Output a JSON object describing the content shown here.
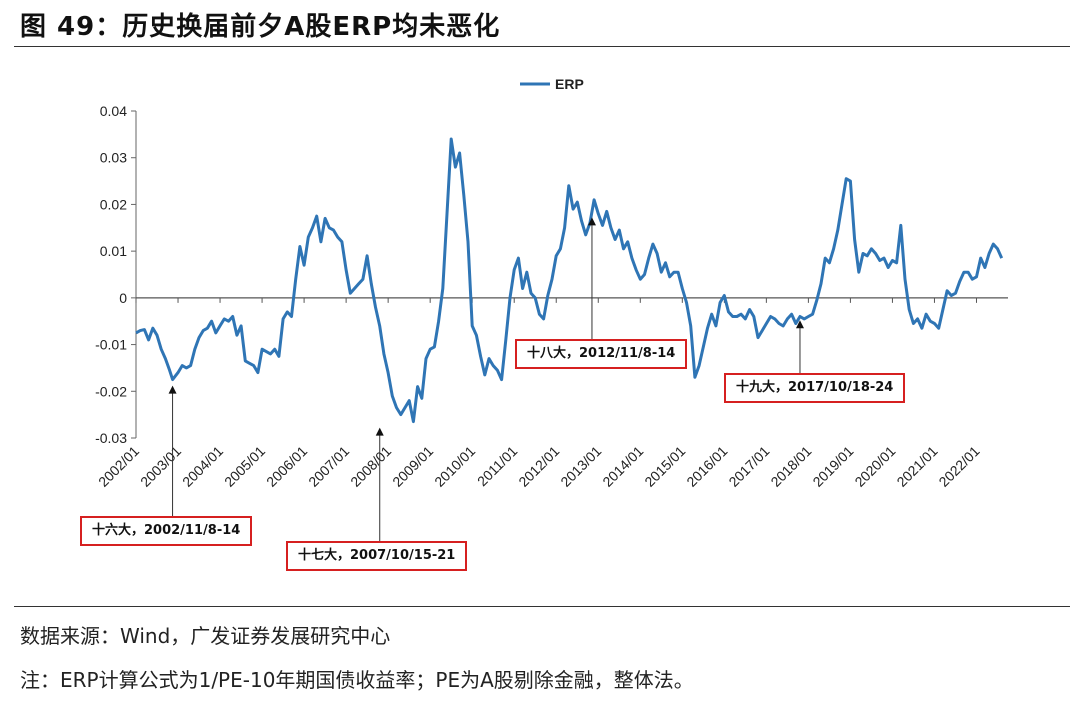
{
  "header": {
    "title": "图 49：历史换届前夕A股ERP均未恶化"
  },
  "footer": {
    "source": "数据来源：Wind，广发证券发展研究中心",
    "note": "注：ERP计算公式为1/PE-10年期国债收益率；PE为A股剔除金融，整体法。"
  },
  "colors": {
    "line": "#2f75b5",
    "annotation_border": "#d62020"
  },
  "chart_data": {
    "type": "line",
    "legend": {
      "position": "top-center"
    },
    "grid": false,
    "ylim": [
      -0.03,
      0.04
    ],
    "yticks": [
      "0.04",
      "0.03",
      "0.02",
      "0.01",
      "0",
      "-0.01",
      "-0.02",
      "-0.03"
    ],
    "xticks": [
      "2002/01",
      "2003/01",
      "2004/01",
      "2005/01",
      "2006/01",
      "2007/01",
      "2008/01",
      "2009/01",
      "2010/01",
      "2011/01",
      "2012/01",
      "2013/01",
      "2014/01",
      "2015/01",
      "2016/01",
      "2017/01",
      "2018/01",
      "2019/01",
      "2020/01",
      "2021/01",
      "2022/01"
    ],
    "series": [
      {
        "name": "ERP",
        "points": [
          [
            2002.0,
            -0.0075
          ],
          [
            2002.1,
            -0.007
          ],
          [
            2002.2,
            -0.0068
          ],
          [
            2002.3,
            -0.009
          ],
          [
            2002.4,
            -0.0065
          ],
          [
            2002.5,
            -0.008
          ],
          [
            2002.6,
            -0.011
          ],
          [
            2002.7,
            -0.013
          ],
          [
            2002.8,
            -0.0155
          ],
          [
            2002.87,
            -0.0175
          ],
          [
            2003.0,
            -0.016
          ],
          [
            2003.1,
            -0.0145
          ],
          [
            2003.2,
            -0.015
          ],
          [
            2003.3,
            -0.0145
          ],
          [
            2003.4,
            -0.011
          ],
          [
            2003.5,
            -0.0085
          ],
          [
            2003.6,
            -0.007
          ],
          [
            2003.7,
            -0.0065
          ],
          [
            2003.8,
            -0.005
          ],
          [
            2003.9,
            -0.0075
          ],
          [
            2004.0,
            -0.006
          ],
          [
            2004.1,
            -0.0045
          ],
          [
            2004.2,
            -0.005
          ],
          [
            2004.3,
            -0.004
          ],
          [
            2004.4,
            -0.008
          ],
          [
            2004.5,
            -0.006
          ],
          [
            2004.6,
            -0.0135
          ],
          [
            2004.7,
            -0.014
          ],
          [
            2004.8,
            -0.0145
          ],
          [
            2004.9,
            -0.016
          ],
          [
            2005.0,
            -0.011
          ],
          [
            2005.1,
            -0.0115
          ],
          [
            2005.2,
            -0.012
          ],
          [
            2005.3,
            -0.011
          ],
          [
            2005.4,
            -0.0125
          ],
          [
            2005.5,
            -0.0045
          ],
          [
            2005.6,
            -0.003
          ],
          [
            2005.7,
            -0.004
          ],
          [
            2005.8,
            0.004
          ],
          [
            2005.9,
            0.011
          ],
          [
            2006.0,
            0.007
          ],
          [
            2006.1,
            0.013
          ],
          [
            2006.2,
            0.015
          ],
          [
            2006.3,
            0.0175
          ],
          [
            2006.4,
            0.012
          ],
          [
            2006.5,
            0.017
          ],
          [
            2006.6,
            0.015
          ],
          [
            2006.7,
            0.0145
          ],
          [
            2006.8,
            0.013
          ],
          [
            2006.9,
            0.012
          ],
          [
            2007.0,
            0.006
          ],
          [
            2007.1,
            0.001
          ],
          [
            2007.2,
            0.002
          ],
          [
            2007.3,
            0.003
          ],
          [
            2007.4,
            0.004
          ],
          [
            2007.5,
            0.009
          ],
          [
            2007.6,
            0.003
          ],
          [
            2007.7,
            -0.002
          ],
          [
            2007.8,
            -0.006
          ],
          [
            2007.9,
            -0.012
          ],
          [
            2008.0,
            -0.016
          ],
          [
            2008.1,
            -0.021
          ],
          [
            2008.2,
            -0.0235
          ],
          [
            2008.3,
            -0.025
          ],
          [
            2008.4,
            -0.0235
          ],
          [
            2008.5,
            -0.022
          ],
          [
            2008.6,
            -0.0265
          ],
          [
            2008.7,
            -0.019
          ],
          [
            2008.8,
            -0.0215
          ],
          [
            2008.9,
            -0.013
          ],
          [
            2009.0,
            -0.011
          ],
          [
            2009.1,
            -0.0105
          ],
          [
            2009.2,
            -0.005
          ],
          [
            2009.3,
            0.002
          ],
          [
            2009.4,
            0.018
          ],
          [
            2009.5,
            0.034
          ],
          [
            2009.6,
            0.028
          ],
          [
            2009.7,
            0.031
          ],
          [
            2009.8,
            0.022
          ],
          [
            2009.9,
            0.012
          ],
          [
            2010.0,
            -0.006
          ],
          [
            2010.1,
            -0.008
          ],
          [
            2010.2,
            -0.0125
          ],
          [
            2010.3,
            -0.0165
          ],
          [
            2010.4,
            -0.013
          ],
          [
            2010.5,
            -0.0145
          ],
          [
            2010.6,
            -0.0155
          ],
          [
            2010.7,
            -0.0175
          ],
          [
            2010.8,
            -0.009
          ],
          [
            2010.9,
            0.0
          ],
          [
            2011.0,
            0.006
          ],
          [
            2011.1,
            0.0085
          ],
          [
            2011.2,
            0.002
          ],
          [
            2011.3,
            0.0055
          ],
          [
            2011.4,
            0.001
          ],
          [
            2011.5,
            0.0
          ],
          [
            2011.6,
            -0.0035
          ],
          [
            2011.7,
            -0.0045
          ],
          [
            2011.8,
            0.0005
          ],
          [
            2011.9,
            0.004
          ],
          [
            2012.0,
            0.009
          ],
          [
            2012.1,
            0.0105
          ],
          [
            2012.2,
            0.015
          ],
          [
            2012.3,
            0.024
          ],
          [
            2012.4,
            0.019
          ],
          [
            2012.5,
            0.0205
          ],
          [
            2012.6,
            0.0165
          ],
          [
            2012.7,
            0.0135
          ],
          [
            2012.8,
            0.016
          ],
          [
            2012.9,
            0.021
          ],
          [
            2013.0,
            0.018
          ],
          [
            2013.1,
            0.0155
          ],
          [
            2013.2,
            0.0185
          ],
          [
            2013.3,
            0.015
          ],
          [
            2013.4,
            0.0125
          ],
          [
            2013.5,
            0.0145
          ],
          [
            2013.6,
            0.0105
          ],
          [
            2013.7,
            0.012
          ],
          [
            2013.8,
            0.0085
          ],
          [
            2013.9,
            0.006
          ],
          [
            2014.0,
            0.004
          ],
          [
            2014.1,
            0.005
          ],
          [
            2014.2,
            0.0085
          ],
          [
            2014.3,
            0.0115
          ],
          [
            2014.4,
            0.0095
          ],
          [
            2014.5,
            0.0055
          ],
          [
            2014.6,
            0.0075
          ],
          [
            2014.7,
            0.0045
          ],
          [
            2014.8,
            0.0055
          ],
          [
            2014.9,
            0.0055
          ],
          [
            2015.0,
            0.002
          ],
          [
            2015.1,
            -0.001
          ],
          [
            2015.2,
            -0.006
          ],
          [
            2015.3,
            -0.017
          ],
          [
            2015.4,
            -0.0145
          ],
          [
            2015.5,
            -0.0105
          ],
          [
            2015.6,
            -0.0065
          ],
          [
            2015.7,
            -0.0035
          ],
          [
            2015.8,
            -0.006
          ],
          [
            2015.9,
            -0.001
          ],
          [
            2016.0,
            0.0005
          ],
          [
            2016.1,
            -0.003
          ],
          [
            2016.2,
            -0.004
          ],
          [
            2016.3,
            -0.004
          ],
          [
            2016.4,
            -0.0035
          ],
          [
            2016.5,
            -0.0045
          ],
          [
            2016.6,
            -0.0025
          ],
          [
            2016.7,
            -0.004
          ],
          [
            2016.8,
            -0.0085
          ],
          [
            2016.9,
            -0.007
          ],
          [
            2017.0,
            -0.0055
          ],
          [
            2017.1,
            -0.004
          ],
          [
            2017.2,
            -0.0045
          ],
          [
            2017.3,
            -0.0055
          ],
          [
            2017.4,
            -0.006
          ],
          [
            2017.5,
            -0.0045
          ],
          [
            2017.6,
            -0.0035
          ],
          [
            2017.7,
            -0.0055
          ],
          [
            2017.8,
            -0.004
          ],
          [
            2017.9,
            -0.0045
          ],
          [
            2018.0,
            -0.004
          ],
          [
            2018.1,
            -0.0035
          ],
          [
            2018.2,
            -0.0005
          ],
          [
            2018.3,
            0.003
          ],
          [
            2018.4,
            0.0085
          ],
          [
            2018.5,
            0.0075
          ],
          [
            2018.6,
            0.0105
          ],
          [
            2018.7,
            0.0145
          ],
          [
            2018.8,
            0.02
          ],
          [
            2018.9,
            0.0255
          ],
          [
            2019.0,
            0.025
          ],
          [
            2019.1,
            0.0125
          ],
          [
            2019.2,
            0.0055
          ],
          [
            2019.3,
            0.0095
          ],
          [
            2019.4,
            0.009
          ],
          [
            2019.5,
            0.0105
          ],
          [
            2019.6,
            0.0095
          ],
          [
            2019.7,
            0.008
          ],
          [
            2019.8,
            0.0085
          ],
          [
            2019.9,
            0.0065
          ],
          [
            2020.0,
            0.008
          ],
          [
            2020.1,
            0.0075
          ],
          [
            2020.2,
            0.0155
          ],
          [
            2020.3,
            0.004
          ],
          [
            2020.4,
            -0.0025
          ],
          [
            2020.5,
            -0.0055
          ],
          [
            2020.6,
            -0.0045
          ],
          [
            2020.7,
            -0.0065
          ],
          [
            2020.8,
            -0.0035
          ],
          [
            2020.9,
            -0.005
          ],
          [
            2021.0,
            -0.0055
          ],
          [
            2021.1,
            -0.0065
          ],
          [
            2021.2,
            -0.0025
          ],
          [
            2021.3,
            0.0015
          ],
          [
            2021.4,
            0.0005
          ],
          [
            2021.5,
            0.001
          ],
          [
            2021.6,
            0.0035
          ],
          [
            2021.7,
            0.0055
          ],
          [
            2021.8,
            0.0055
          ],
          [
            2021.9,
            0.004
          ],
          [
            2022.0,
            0.0045
          ],
          [
            2022.1,
            0.0085
          ],
          [
            2022.2,
            0.0065
          ],
          [
            2022.3,
            0.0095
          ],
          [
            2022.4,
            0.0115
          ],
          [
            2022.5,
            0.0105
          ],
          [
            2022.6,
            0.0085
          ]
        ]
      }
    ],
    "annotations": [
      {
        "text": "十六大，2002/11/8-14",
        "x": 2002.87,
        "y": -0.0175
      },
      {
        "text": "十七大，2007/10/15-21",
        "x": 2007.8,
        "y": -0.0265
      },
      {
        "text": "十八大，2012/11/8-14",
        "x": 2012.85,
        "y": 0.0185
      },
      {
        "text": "十九大，2017/10/18-24",
        "x": 2017.8,
        "y": -0.0035
      }
    ]
  }
}
